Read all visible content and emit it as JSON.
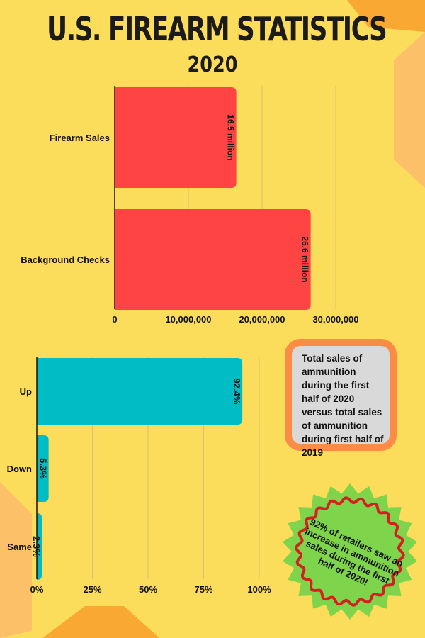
{
  "header": {
    "title": "U.S. FIREARM STATISTICS",
    "subtitle": "2020"
  },
  "colors": {
    "background": "#fcdc5b",
    "decor_orange": "#fcc068",
    "decor_dark_orange": "#f9a834",
    "bar_red": "#ff4444",
    "bar_teal": "#00bcc5",
    "badge_green": "#7ed44a",
    "badge_ring": "#d42020",
    "note_border": "#fb8c46",
    "note_fill": "#d9d9d9"
  },
  "chart_data": [
    {
      "type": "bar",
      "orientation": "horizontal",
      "categories": [
        "Firearm Sales",
        "Background Checks"
      ],
      "values": [
        16500000,
        26600000
      ],
      "data_labels": [
        "16.5 million",
        "26.6 million"
      ],
      "xlim": [
        0,
        30000000
      ],
      "x_ticks": [
        0,
        10000000,
        20000000,
        30000000
      ],
      "x_tick_labels": [
        "0",
        "10,000,000",
        "20,000,000",
        "30,000,000"
      ],
      "grid": true
    },
    {
      "type": "bar",
      "orientation": "horizontal",
      "categories": [
        "Up",
        "Down",
        "Same"
      ],
      "values": [
        92.4,
        5.3,
        2.3
      ],
      "data_labels": [
        "92.4%",
        "5.3%",
        "2.3%"
      ],
      "xlim": [
        0,
        100
      ],
      "x_ticks": [
        0,
        25,
        50,
        75,
        100
      ],
      "x_tick_labels": [
        "0%",
        "25%",
        "50%",
        "75%",
        "100%"
      ],
      "grid": true
    }
  ],
  "note": {
    "text": "Total sales of ammunition during the first half of 2020 versus total sales of ammunition during first half of 2019"
  },
  "badge": {
    "text": "92% of retailers saw an increase in ammunition sales during the first half of 2020!"
  }
}
